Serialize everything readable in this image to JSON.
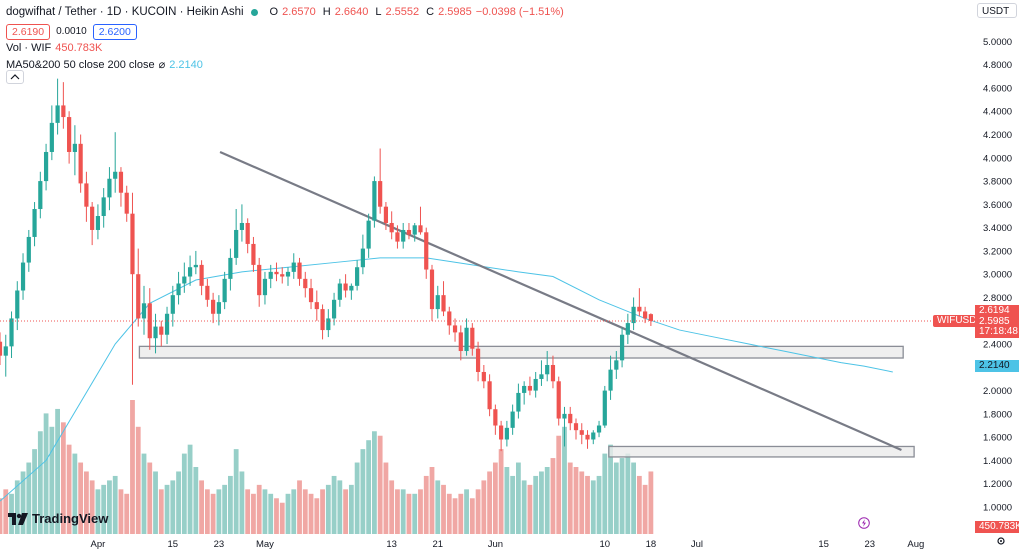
{
  "header": {
    "title": "dogwifhat / Tether · 1D · KUCOIN · Heikin Ashi",
    "ohlc": [
      {
        "key": "O",
        "value": "2.6570"
      },
      {
        "key": "H",
        "value": "2.6640"
      },
      {
        "key": "L",
        "value": "2.5552"
      },
      {
        "key": "C",
        "value": "2.5985"
      },
      {
        "key": "",
        "value": "−0.0398 (−1.51%)"
      }
    ],
    "sell_price": "2.6190",
    "spread": "0.0010",
    "buy_price": "2.6200"
  },
  "indicators": {
    "volume_label": "Vol · WIF",
    "volume_value": "450.783K",
    "ma_label": "MA50&200 50 close 200 close",
    "ma_sep": "⌀",
    "ma_value": "2.2140"
  },
  "currency": "USDT",
  "price_tags": {
    "high": "2.6194",
    "last": "2.5985",
    "countdown": "17:18:48",
    "ma": "2.2140",
    "volume": "450.783K",
    "symbol": "WIFUSDT"
  },
  "brand": "TradingView",
  "colors": {
    "up": "#26a69a",
    "down": "#ef5350",
    "ma": "#4dc3e6",
    "volUp": "#97cfc8",
    "volDown": "#f0a7a4",
    "trend": "#787b86"
  },
  "icons": [
    "chevron-up-icon",
    "settings-gear-icon",
    "lightning-icon",
    "tradingview-logo-icon"
  ],
  "chart_data": {
    "type": "candlestick",
    "style": "Heikin Ashi",
    "ylim": [
      1.2,
      5.2
    ],
    "ytick_labels": [
      "5.0000",
      "4.8000",
      "4.6000",
      "4.4000",
      "4.2000",
      "4.0000",
      "3.8000",
      "3.6000",
      "3.4000",
      "3.2000",
      "3.0000",
      "2.8000",
      "2.6000",
      "2.4000",
      "2.2000",
      "2.0000",
      "1.8000",
      "1.6000",
      "1.4000",
      "1.2000",
      "1.0000"
    ],
    "ytick_values": [
      5.0,
      4.8,
      4.6,
      4.4,
      4.2,
      4.0,
      3.8,
      3.6,
      3.4,
      3.2,
      3.0,
      2.8,
      2.6,
      2.4,
      2.2,
      2.0,
      1.8,
      1.6,
      1.4,
      1.2,
      1.0
    ],
    "xtick_labels": [
      "Apr",
      "15",
      "23",
      "May",
      "13",
      "21",
      "Jun",
      "10",
      "18",
      "Jul",
      "15",
      "23",
      "Aug"
    ],
    "xtick_days": [
      17,
      30,
      38,
      46,
      68,
      76,
      86,
      105,
      113,
      121,
      143,
      151,
      159
    ],
    "start_date": "2024-03-15",
    "candles": [
      [
        2.42,
        2.5,
        2.22,
        2.3
      ],
      [
        2.3,
        2.48,
        2.12,
        2.38
      ],
      [
        2.38,
        2.68,
        2.28,
        2.62
      ],
      [
        2.62,
        2.94,
        2.52,
        2.86
      ],
      [
        2.86,
        3.18,
        2.78,
        3.1
      ],
      [
        3.1,
        3.38,
        3.02,
        3.32
      ],
      [
        3.32,
        3.62,
        3.24,
        3.56
      ],
      [
        3.56,
        3.88,
        3.48,
        3.8
      ],
      [
        3.8,
        4.12,
        3.72,
        4.05
      ],
      [
        4.05,
        4.45,
        3.98,
        4.3
      ],
      [
        4.3,
        4.68,
        4.2,
        4.45
      ],
      [
        4.45,
        4.65,
        4.25,
        4.35
      ],
      [
        4.35,
        4.4,
        3.95,
        4.05
      ],
      [
        4.05,
        4.28,
        3.85,
        4.12
      ],
      [
        4.12,
        4.2,
        3.7,
        3.78
      ],
      [
        3.78,
        3.88,
        3.45,
        3.58
      ],
      [
        3.58,
        3.62,
        3.25,
        3.38
      ],
      [
        3.38,
        3.6,
        3.3,
        3.5
      ],
      [
        3.5,
        3.74,
        3.4,
        3.66
      ],
      [
        3.66,
        3.92,
        3.55,
        3.82
      ],
      [
        3.82,
        4.22,
        3.7,
        3.88
      ],
      [
        3.88,
        3.92,
        3.58,
        3.7
      ],
      [
        3.7,
        3.76,
        3.45,
        3.52
      ],
      [
        3.52,
        3.7,
        2.05,
        3.0
      ],
      [
        3.0,
        3.22,
        2.55,
        2.62
      ],
      [
        2.62,
        2.9,
        2.48,
        2.75
      ],
      [
        2.75,
        2.88,
        2.35,
        2.45
      ],
      [
        2.45,
        2.66,
        2.32,
        2.55
      ],
      [
        2.55,
        2.6,
        2.38,
        2.48
      ],
      [
        2.48,
        2.72,
        2.4,
        2.66
      ],
      [
        2.66,
        2.9,
        2.55,
        2.82
      ],
      [
        2.82,
        3.02,
        2.74,
        2.92
      ],
      [
        2.92,
        3.1,
        2.84,
        2.98
      ],
      [
        2.98,
        3.16,
        2.9,
        3.06
      ],
      [
        3.06,
        3.2,
        3.0,
        3.08
      ],
      [
        3.08,
        3.12,
        2.82,
        2.9
      ],
      [
        2.9,
        2.96,
        2.72,
        2.78
      ],
      [
        2.78,
        2.84,
        2.58,
        2.66
      ],
      [
        2.66,
        2.82,
        2.56,
        2.76
      ],
      [
        2.76,
        3.02,
        2.7,
        2.96
      ],
      [
        2.96,
        3.22,
        2.86,
        3.14
      ],
      [
        3.14,
        3.56,
        3.08,
        3.38
      ],
      [
        3.38,
        3.6,
        3.28,
        3.44
      ],
      [
        3.44,
        3.48,
        3.18,
        3.26
      ],
      [
        3.26,
        3.32,
        3.02,
        3.08
      ],
      [
        3.08,
        3.14,
        2.72,
        2.82
      ],
      [
        2.82,
        3.02,
        2.74,
        2.96
      ],
      [
        2.96,
        3.08,
        2.88,
        3.02
      ],
      [
        3.02,
        3.1,
        2.94,
        3.0
      ],
      [
        3.0,
        3.06,
        2.92,
        2.98
      ],
      [
        2.98,
        3.06,
        2.9,
        3.02
      ],
      [
        3.02,
        3.18,
        2.96,
        3.1
      ],
      [
        3.1,
        3.14,
        2.9,
        2.96
      ],
      [
        2.96,
        3.02,
        2.8,
        2.88
      ],
      [
        2.88,
        2.96,
        2.7,
        2.76
      ],
      [
        2.76,
        2.86,
        2.6,
        2.7
      ],
      [
        2.7,
        2.74,
        2.44,
        2.52
      ],
      [
        2.52,
        2.7,
        2.46,
        2.62
      ],
      [
        2.62,
        2.84,
        2.56,
        2.78
      ],
      [
        2.78,
        2.96,
        2.72,
        2.92
      ],
      [
        2.92,
        3.0,
        2.8,
        2.86
      ],
      [
        2.86,
        2.92,
        2.78,
        2.9
      ],
      [
        2.9,
        3.12,
        2.86,
        3.06
      ],
      [
        3.06,
        3.34,
        3.0,
        3.22
      ],
      [
        3.22,
        3.52,
        3.14,
        3.46
      ],
      [
        3.46,
        3.84,
        3.4,
        3.8
      ],
      [
        3.8,
        4.08,
        3.52,
        3.58
      ],
      [
        3.58,
        3.62,
        3.38,
        3.44
      ],
      [
        3.44,
        3.54,
        3.3,
        3.36
      ],
      [
        3.36,
        3.42,
        3.22,
        3.28
      ],
      [
        3.28,
        3.44,
        3.22,
        3.38
      ],
      [
        3.38,
        3.44,
        3.3,
        3.34
      ],
      [
        3.34,
        3.44,
        3.28,
        3.42
      ],
      [
        3.42,
        3.58,
        3.34,
        3.36
      ],
      [
        3.36,
        3.4,
        2.96,
        3.04
      ],
      [
        3.04,
        3.08,
        2.6,
        2.7
      ],
      [
        2.7,
        2.9,
        2.62,
        2.82
      ],
      [
        2.82,
        2.94,
        2.64,
        2.68
      ],
      [
        2.68,
        2.72,
        2.48,
        2.56
      ],
      [
        2.56,
        2.62,
        2.42,
        2.5
      ],
      [
        2.5,
        2.56,
        2.26,
        2.34
      ],
      [
        2.34,
        2.62,
        2.3,
        2.54
      ],
      [
        2.54,
        2.58,
        2.3,
        2.36
      ],
      [
        2.36,
        2.42,
        2.08,
        2.16
      ],
      [
        2.16,
        2.22,
        2.02,
        2.08
      ],
      [
        2.08,
        2.14,
        1.78,
        1.84
      ],
      [
        1.84,
        1.88,
        1.62,
        1.7
      ],
      [
        1.7,
        1.74,
        1.48,
        1.58
      ],
      [
        1.58,
        1.74,
        1.52,
        1.68
      ],
      [
        1.68,
        1.88,
        1.62,
        1.82
      ],
      [
        1.82,
        2.06,
        1.76,
        1.98
      ],
      [
        1.98,
        2.08,
        1.88,
        2.04
      ],
      [
        2.04,
        2.12,
        1.96,
        2.0
      ],
      [
        2.0,
        2.16,
        1.94,
        2.1
      ],
      [
        2.1,
        2.26,
        2.04,
        2.14
      ],
      [
        2.14,
        2.34,
        2.08,
        2.22
      ],
      [
        2.22,
        2.3,
        2.02,
        2.08
      ],
      [
        2.08,
        2.12,
        1.7,
        1.76
      ],
      [
        1.76,
        1.86,
        1.52,
        1.8
      ],
      [
        1.8,
        1.86,
        1.66,
        1.72
      ],
      [
        1.72,
        1.76,
        1.58,
        1.66
      ],
      [
        1.66,
        1.72,
        1.54,
        1.62
      ],
      [
        1.62,
        1.66,
        1.5,
        1.58
      ],
      [
        1.58,
        1.66,
        1.54,
        1.64
      ],
      [
        1.64,
        1.74,
        1.6,
        1.7
      ],
      [
        1.7,
        2.04,
        1.68,
        2.0
      ],
      [
        2.0,
        2.3,
        1.92,
        2.18
      ],
      [
        2.18,
        2.34,
        2.1,
        2.26
      ],
      [
        2.26,
        2.54,
        2.2,
        2.48
      ],
      [
        2.48,
        2.66,
        2.4,
        2.58
      ],
      [
        2.58,
        2.8,
        2.52,
        2.72
      ],
      [
        2.72,
        2.88,
        2.64,
        2.68
      ],
      [
        2.68,
        2.72,
        2.58,
        2.62
      ],
      [
        2.657,
        2.664,
        2.5552,
        2.5985
      ]
    ],
    "ma50": [
      [
        0,
        1.05
      ],
      [
        8,
        1.4
      ],
      [
        14,
        1.9
      ],
      [
        20,
        2.4
      ],
      [
        26,
        2.75
      ],
      [
        34,
        2.95
      ],
      [
        42,
        3.02
      ],
      [
        50,
        3.06
      ],
      [
        58,
        3.1
      ],
      [
        66,
        3.14
      ],
      [
        74,
        3.14
      ],
      [
        82,
        3.08
      ],
      [
        90,
        3.02
      ],
      [
        96,
        2.98
      ],
      [
        104,
        2.78
      ],
      [
        112,
        2.62
      ],
      [
        118,
        2.52
      ],
      [
        124,
        2.46
      ],
      [
        130,
        2.4
      ],
      [
        136,
        2.34
      ],
      [
        142,
        2.28
      ],
      [
        146,
        2.24
      ],
      [
        150,
        2.21
      ],
      [
        155,
        2.16
      ]
    ],
    "volume": [
      [
        0.8,
        0
      ],
      [
        1.0,
        0
      ],
      [
        0.9,
        1
      ],
      [
        1.2,
        1
      ],
      [
        1.4,
        1
      ],
      [
        1.6,
        1
      ],
      [
        1.9,
        1
      ],
      [
        2.3,
        1
      ],
      [
        2.7,
        1
      ],
      [
        2.4,
        1
      ],
      [
        2.8,
        1
      ],
      [
        2.5,
        0
      ],
      [
        2.0,
        0
      ],
      [
        1.8,
        1
      ],
      [
        1.6,
        0
      ],
      [
        1.4,
        0
      ],
      [
        1.2,
        0
      ],
      [
        1.0,
        1
      ],
      [
        1.1,
        1
      ],
      [
        1.2,
        1
      ],
      [
        1.3,
        1
      ],
      [
        1.0,
        0
      ],
      [
        0.9,
        0
      ],
      [
        3.0,
        0
      ],
      [
        2.4,
        0
      ],
      [
        1.8,
        1
      ],
      [
        1.6,
        0
      ],
      [
        1.4,
        1
      ],
      [
        1.0,
        0
      ],
      [
        1.1,
        1
      ],
      [
        1.2,
        1
      ],
      [
        1.4,
        1
      ],
      [
        1.8,
        1
      ],
      [
        2.0,
        1
      ],
      [
        1.5,
        1
      ],
      [
        1.2,
        0
      ],
      [
        1.0,
        0
      ],
      [
        0.9,
        0
      ],
      [
        1.0,
        1
      ],
      [
        1.1,
        1
      ],
      [
        1.3,
        1
      ],
      [
        1.9,
        1
      ],
      [
        1.4,
        1
      ],
      [
        1.0,
        0
      ],
      [
        0.9,
        0
      ],
      [
        1.1,
        0
      ],
      [
        1.0,
        1
      ],
      [
        0.9,
        1
      ],
      [
        0.8,
        0
      ],
      [
        0.7,
        0
      ],
      [
        0.9,
        1
      ],
      [
        1.0,
        1
      ],
      [
        1.2,
        0
      ],
      [
        1.0,
        0
      ],
      [
        0.9,
        0
      ],
      [
        0.8,
        0
      ],
      [
        1.0,
        0
      ],
      [
        1.1,
        1
      ],
      [
        1.3,
        1
      ],
      [
        1.2,
        1
      ],
      [
        1.0,
        0
      ],
      [
        1.1,
        1
      ],
      [
        1.6,
        1
      ],
      [
        1.9,
        1
      ],
      [
        2.1,
        1
      ],
      [
        2.3,
        1
      ],
      [
        2.2,
        0
      ],
      [
        1.6,
        0
      ],
      [
        1.2,
        0
      ],
      [
        1.0,
        0
      ],
      [
        1.0,
        1
      ],
      [
        0.9,
        0
      ],
      [
        0.9,
        1
      ],
      [
        1.0,
        0
      ],
      [
        1.3,
        0
      ],
      [
        1.5,
        0
      ],
      [
        1.2,
        1
      ],
      [
        1.1,
        0
      ],
      [
        0.9,
        0
      ],
      [
        0.8,
        0
      ],
      [
        0.9,
        0
      ],
      [
        1.0,
        1
      ],
      [
        0.8,
        0
      ],
      [
        1.0,
        0
      ],
      [
        1.2,
        0
      ],
      [
        1.4,
        0
      ],
      [
        1.6,
        0
      ],
      [
        1.9,
        0
      ],
      [
        1.5,
        1
      ],
      [
        1.3,
        1
      ],
      [
        1.6,
        1
      ],
      [
        1.2,
        1
      ],
      [
        1.1,
        0
      ],
      [
        1.3,
        1
      ],
      [
        1.4,
        1
      ],
      [
        1.5,
        1
      ],
      [
        1.7,
        0
      ],
      [
        2.2,
        0
      ],
      [
        2.4,
        1
      ],
      [
        1.6,
        0
      ],
      [
        1.5,
        0
      ],
      [
        1.4,
        0
      ],
      [
        1.3,
        0
      ],
      [
        1.2,
        1
      ],
      [
        1.3,
        1
      ],
      [
        1.8,
        1
      ],
      [
        2.0,
        1
      ],
      [
        1.6,
        1
      ],
      [
        1.7,
        1
      ],
      [
        1.8,
        1
      ],
      [
        1.6,
        1
      ],
      [
        1.3,
        0
      ],
      [
        1.1,
        0
      ],
      [
        1.4,
        0
      ]
    ],
    "volume_max": 3.0,
    "trendline": [
      [
        38.2,
        4.05
      ],
      [
        156.5,
        1.49
      ]
    ],
    "zones": [
      [
        24.2,
        156.8,
        2.28,
        2.38
      ],
      [
        105.7,
        158.7,
        1.43,
        1.52
      ]
    ]
  }
}
